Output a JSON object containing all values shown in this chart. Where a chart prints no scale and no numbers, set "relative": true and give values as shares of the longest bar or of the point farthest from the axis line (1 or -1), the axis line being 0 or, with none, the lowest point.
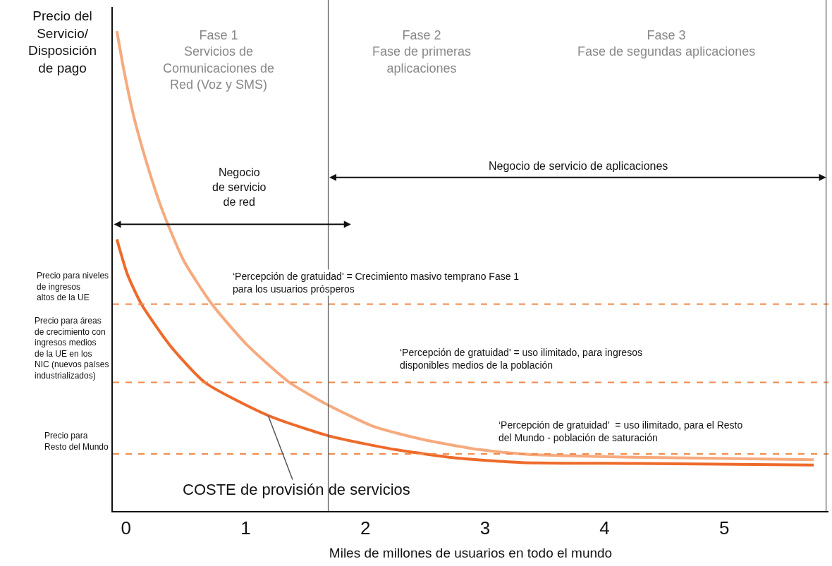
{
  "chart_data": {
    "type": "line",
    "relative": true,
    "xlabel": "Miles de millones de usuarios en todo el mundo",
    "ylabel": "Precio del\nServicio/\nDisposición\nde pago",
    "xlim": [
      -0.11,
      5.87
    ],
    "xticks": [
      0,
      1,
      2,
      3,
      4,
      5
    ],
    "tick_labels": "x",
    "grid": false,
    "legend": false,
    "marker": "none",
    "line_style": "solid",
    "series": [
      {
        "color": "#f6aa7e",
        "x": [
          -0.076,
          -0.018,
          0.071,
          0.188,
          0.306,
          0.482,
          0.718,
          1.012,
          1.365,
          1.688,
          2.071,
          2.482,
          2.953,
          3.365,
          4.247,
          5.747
        ],
        "values": [
          1.0,
          0.919,
          0.816,
          0.713,
          0.625,
          0.522,
          0.431,
          0.346,
          0.268,
          0.221,
          0.176,
          0.149,
          0.128,
          0.118,
          0.112,
          0.107
        ]
      },
      {
        "color": "#ee6a2a",
        "x": [
          -0.076,
          0.012,
          0.129,
          0.365,
          0.659,
          1.188,
          1.688,
          2.247,
          2.776,
          3.306,
          4.247,
          5.747
        ],
        "values": [
          0.566,
          0.493,
          0.431,
          0.346,
          0.268,
          0.199,
          0.157,
          0.128,
          0.11,
          0.101,
          0.099,
          0.096
        ]
      }
    ],
    "ref_lines": [
      {
        "axis": "y",
        "value": 0.431,
        "label": "Precio para niveles\nde ingresos\naltos de la UE",
        "color": "#f08a4b",
        "line_style": "dashed"
      },
      {
        "axis": "y",
        "value": 0.268,
        "label": "Precio para áreas\nde crecimiento con\ningresos medios\nde la UE en los\nNIC (nuevos países\nindustrializados)",
        "color": "#f08a4b",
        "line_style": "dashed"
      },
      {
        "axis": "y",
        "value": 0.119,
        "label": "Precio para\nResto del Mundo",
        "color": "#f08a4b",
        "line_style": "dashed"
      },
      {
        "axis": "x",
        "value": 1.69,
        "color": "#555555",
        "line_style": "solid"
      },
      {
        "axis": "x",
        "value": 5.85,
        "color": "#555555",
        "line_style": "solid"
      }
    ],
    "annotations": [
      "Fase 1\nServicios de\nComunicaciones de\nRed (Voz y SMS)",
      "Fase 2\nFase de primeras\naplicaciones",
      "Fase 3\nFase de segundas aplicaciones",
      "Negocio\nde servicio\nde red",
      "Negocio de servicio de aplicaciones",
      "‘Percepción de gratuidad' = Crecimiento masivo temprano Fase 1\npara los usuarios prósperos",
      "‘Percepción de gratuidad' = uso ilimitado, para ingresos\ndisponibles medios de la población",
      "‘Percepción de gratuidad'  = uso ilimitado, para el Resto\ndel Mundo - población de saturación",
      {
        "text": "COSTE de provisión de servicios",
        "x": 1.188,
        "y": 0.199
      }
    ]
  }
}
